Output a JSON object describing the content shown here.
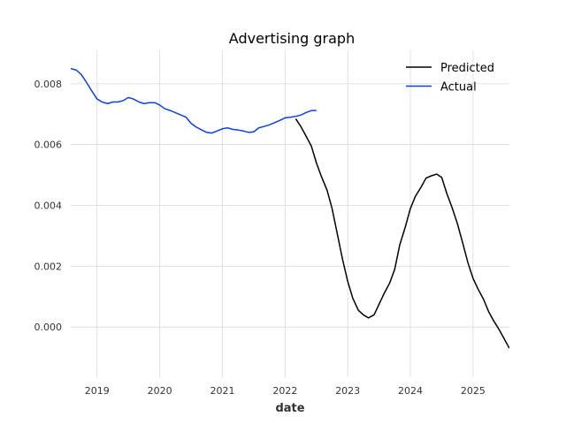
{
  "chart_data": {
    "type": "line",
    "title": "Advertising graph",
    "xlabel": "date",
    "ylabel": "",
    "xlim": [
      2018.58,
      2025.58
    ],
    "ylim": [
      -0.00165,
      0.0091
    ],
    "x_ticks": [
      2019,
      2020,
      2021,
      2022,
      2023,
      2024,
      2025
    ],
    "y_ticks": [
      0.0,
      0.002,
      0.004,
      0.006,
      0.008
    ],
    "y_tick_labels": [
      "0.000",
      "0.002",
      "0.004",
      "0.006",
      "0.008"
    ],
    "grid": true,
    "legend_position": "top-right",
    "series": [
      {
        "name": "Predicted",
        "color": "#000000",
        "x": [
          2022.17,
          2022.25,
          2022.33,
          2022.42,
          2022.5,
          2022.58,
          2022.67,
          2022.75,
          2022.83,
          2022.92,
          2023.0,
          2023.08,
          2023.17,
          2023.25,
          2023.33,
          2023.42,
          2023.5,
          2023.58,
          2023.67,
          2023.75,
          2023.83,
          2023.92,
          2024.0,
          2024.08,
          2024.17,
          2024.25,
          2024.33,
          2024.42,
          2024.5,
          2024.58,
          2024.67,
          2024.75,
          2024.83,
          2024.92,
          2025.0,
          2025.08,
          2025.17,
          2025.25,
          2025.33,
          2025.42,
          2025.5,
          2025.58
        ],
        "y": [
          0.00685,
          0.0066,
          0.0063,
          0.00595,
          0.0054,
          0.00495,
          0.0045,
          0.0039,
          0.0031,
          0.0022,
          0.0015,
          0.00095,
          0.00055,
          0.0004,
          0.0003,
          0.0004,
          0.00075,
          0.0011,
          0.00145,
          0.0019,
          0.0027,
          0.0033,
          0.0039,
          0.0043,
          0.0046,
          0.0049,
          0.00497,
          0.00503,
          0.00492,
          0.0044,
          0.0039,
          0.0034,
          0.0028,
          0.0021,
          0.0016,
          0.00125,
          0.0009,
          0.0005,
          0.0002,
          -0.0001,
          -0.0004,
          -0.0007
        ]
      },
      {
        "name": "Actual",
        "color": "#0a41e0",
        "x": [
          2018.58,
          2018.67,
          2018.75,
          2018.83,
          2018.92,
          2019.0,
          2019.08,
          2019.17,
          2019.25,
          2019.33,
          2019.42,
          2019.5,
          2019.58,
          2019.67,
          2019.75,
          2019.83,
          2019.92,
          2020.0,
          2020.08,
          2020.17,
          2020.25,
          2020.33,
          2020.42,
          2020.5,
          2020.58,
          2020.67,
          2020.75,
          2020.83,
          2020.92,
          2021.0,
          2021.08,
          2021.17,
          2021.25,
          2021.33,
          2021.42,
          2021.5,
          2021.58,
          2021.67,
          2021.75,
          2021.83,
          2021.92,
          2022.0,
          2022.08,
          2022.17,
          2022.25,
          2022.33,
          2022.42,
          2022.5
        ],
        "y": [
          0.0085,
          0.00845,
          0.0083,
          0.00805,
          0.00775,
          0.0075,
          0.0074,
          0.00735,
          0.0074,
          0.0074,
          0.00745,
          0.00755,
          0.0075,
          0.0074,
          0.00735,
          0.00738,
          0.00738,
          0.0073,
          0.00718,
          0.00712,
          0.00705,
          0.00698,
          0.0069,
          0.0067,
          0.00658,
          0.00648,
          0.0064,
          0.00638,
          0.00645,
          0.00652,
          0.00655,
          0.0065,
          0.00648,
          0.00645,
          0.0064,
          0.00642,
          0.00655,
          0.0066,
          0.00665,
          0.00672,
          0.0068,
          0.00688,
          0.0069,
          0.00693,
          0.00697,
          0.00705,
          0.00712,
          0.00712
        ]
      }
    ]
  }
}
